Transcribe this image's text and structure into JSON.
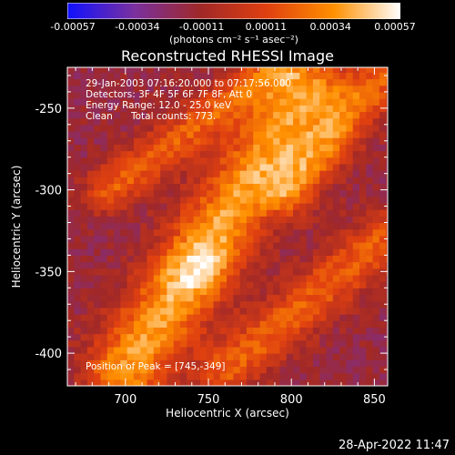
{
  "chart_data": {
    "type": "heatmap",
    "title": "Reconstructed RHESSI Image",
    "xlabel": "Heliocentric X (arcsec)",
    "ylabel": "Heliocentric Y (arcsec)",
    "xlim": [
      665,
      858
    ],
    "ylim": [
      -420,
      -225
    ],
    "x_ticks": [
      700,
      750,
      800,
      850
    ],
    "y_ticks": [
      -250,
      -300,
      -350,
      -400
    ],
    "colorbar": {
      "ticks": [
        "-0.00057",
        "-0.00034",
        "-0.00011",
        "0.00011",
        "0.00034",
        "0.00057"
      ],
      "units": "(photons cm⁻² s⁻¹ asec⁻²)",
      "range": [
        -0.00057,
        0.00057
      ],
      "colormap": [
        "#1010ff",
        "#7a30a0",
        "#a02828",
        "#e04010",
        "#ff9000",
        "#ffffff"
      ]
    },
    "annotations": [
      "29-Jan-2003 07:16:20.000 to 07:17:56.000",
      "Detectors: 3F 4F 5F 6F 7F 8F, Att 0",
      "Energy Range: 12.0 - 25.0 keV",
      "Clean",
      "Total counts: 773."
    ],
    "peak_label": "Position of Peak = [745,-349]",
    "peak": [
      745,
      -349
    ],
    "features": [
      {
        "name": "central diagonal bright ridge",
        "from": [
          700,
          -410
        ],
        "to": [
          810,
          -240
        ],
        "peak_value": 0.00057
      },
      {
        "name": "upper-left ridge",
        "from": [
          690,
          -300
        ],
        "to": [
          790,
          -225
        ]
      },
      {
        "name": "upper-right ridge",
        "from": [
          800,
          -300
        ],
        "to": [
          855,
          -230
        ]
      },
      {
        "name": "lower-right ridge",
        "from": [
          760,
          -410
        ],
        "to": [
          855,
          -330
        ]
      }
    ]
  },
  "timestamp": "28-Apr-2022 11:47"
}
